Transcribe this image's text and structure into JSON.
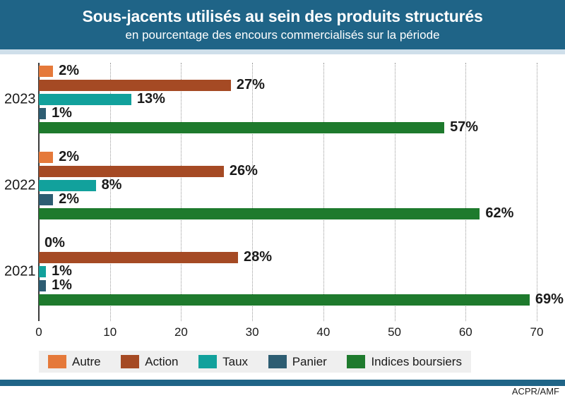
{
  "header": {
    "title": "Sous-jacents utilisés au sein des produits structurés",
    "subtitle": "en pourcentage des encours commercialisés sur la période"
  },
  "colors": {
    "header_bg": "#1f6487",
    "header_text": "#ffffff",
    "header_strip": "#cfdfea",
    "legend_bg": "#efefef",
    "footer_bar": "#1f6487",
    "grid": "#9a9a9a",
    "axis": "#3a3a3a",
    "text": "#1a1a1a"
  },
  "chart_data": {
    "type": "bar",
    "orientation": "horizontal",
    "title": "Sous-jacents utilisés au sein des produits structurés",
    "subtitle": "en pourcentage des encours commercialisés sur la période",
    "categories": [
      "2023",
      "2022",
      "2021"
    ],
    "series": [
      {
        "name": "Autre",
        "color": "#e5793a",
        "values": [
          2,
          2,
          0
        ]
      },
      {
        "name": "Action",
        "color": "#a54a24",
        "values": [
          27,
          26,
          28
        ]
      },
      {
        "name": "Taux",
        "color": "#12a19c",
        "values": [
          13,
          8,
          1
        ]
      },
      {
        "name": "Panier",
        "color": "#2d5d72",
        "values": [
          1,
          2,
          1
        ]
      },
      {
        "name": "Indices boursiers",
        "color": "#1e7a2d",
        "values": [
          57,
          62,
          69
        ]
      }
    ],
    "value_suffix": "%",
    "xlim": [
      0,
      70
    ],
    "x_ticks": [
      0,
      10,
      20,
      30,
      40,
      50,
      60,
      70
    ],
    "grid": "vertical-dotted",
    "legend_position": "bottom"
  },
  "footer": {
    "credit": "ACPR/AMF"
  }
}
